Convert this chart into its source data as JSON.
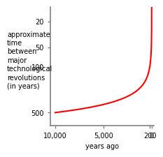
{
  "title": "",
  "xlabel": "years ago",
  "ylabel_lines": [
    "approximate",
    "time",
    "between",
    "major",
    "technological",
    "revolutions",
    "(in years)"
  ],
  "x_ticks": [
    10000,
    5000,
    200,
    0
  ],
  "x_tick_labels": [
    "10,000",
    "5,000",
    "200",
    "0"
  ],
  "y_ticks": [
    20,
    50,
    100,
    500
  ],
  "y_tick_labels": [
    "20",
    "50",
    "100",
    "500"
  ],
  "xlim_left": 10500,
  "xlim_right": -200,
  "ylim_top": 12,
  "ylim_bottom": 800,
  "line_color": "#ff0000",
  "line_width": 1.5,
  "bg_color": "#ffffff",
  "axis_color": "#808080",
  "arrow_color": "#ff0000",
  "label_fontsize": 7.0,
  "tick_fontsize": 7.0
}
